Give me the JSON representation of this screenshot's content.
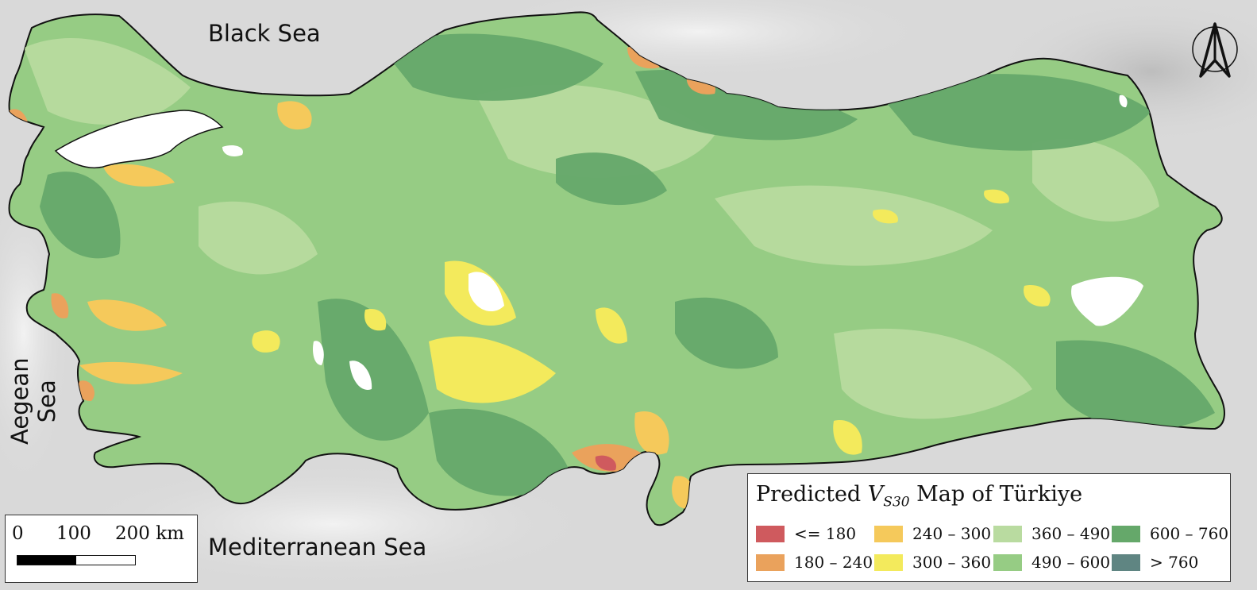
{
  "map": {
    "labels": {
      "black_sea": "Black Sea",
      "mediterranean_sea": "Mediterranean Sea",
      "aegean_sea_line1": "Aegean",
      "aegean_sea_line2": "Sea"
    },
    "north_arrow_icon": "north-arrow-icon",
    "legend": {
      "title_prefix": "Predicted ",
      "title_var": "V",
      "title_sub": "S30",
      "title_suffix": " Map of Türkiye",
      "classes": [
        {
          "label": "<= 180",
          "color": "#cf5a5e"
        },
        {
          "label": "180 – 240",
          "color": "#eaa25c"
        },
        {
          "label": "240 – 300",
          "color": "#f5c95b"
        },
        {
          "label": "300 – 360",
          "color": "#f3ea5c"
        },
        {
          "label": "360 – 490",
          "color": "#b9dba0"
        },
        {
          "label": "490 – 600",
          "color": "#96cc84"
        },
        {
          "label": "600 – 760",
          "color": "#65a86a"
        },
        {
          "label": "> 760",
          "color": "#5f8582"
        }
      ]
    },
    "scale_bar": {
      "ticks": [
        "0",
        "100",
        "200 km"
      ]
    },
    "colors": {
      "land_base": "#96cc84",
      "sea_background": "#d8d8d8",
      "lake": "#ffffff",
      "border": "#111111"
    }
  }
}
